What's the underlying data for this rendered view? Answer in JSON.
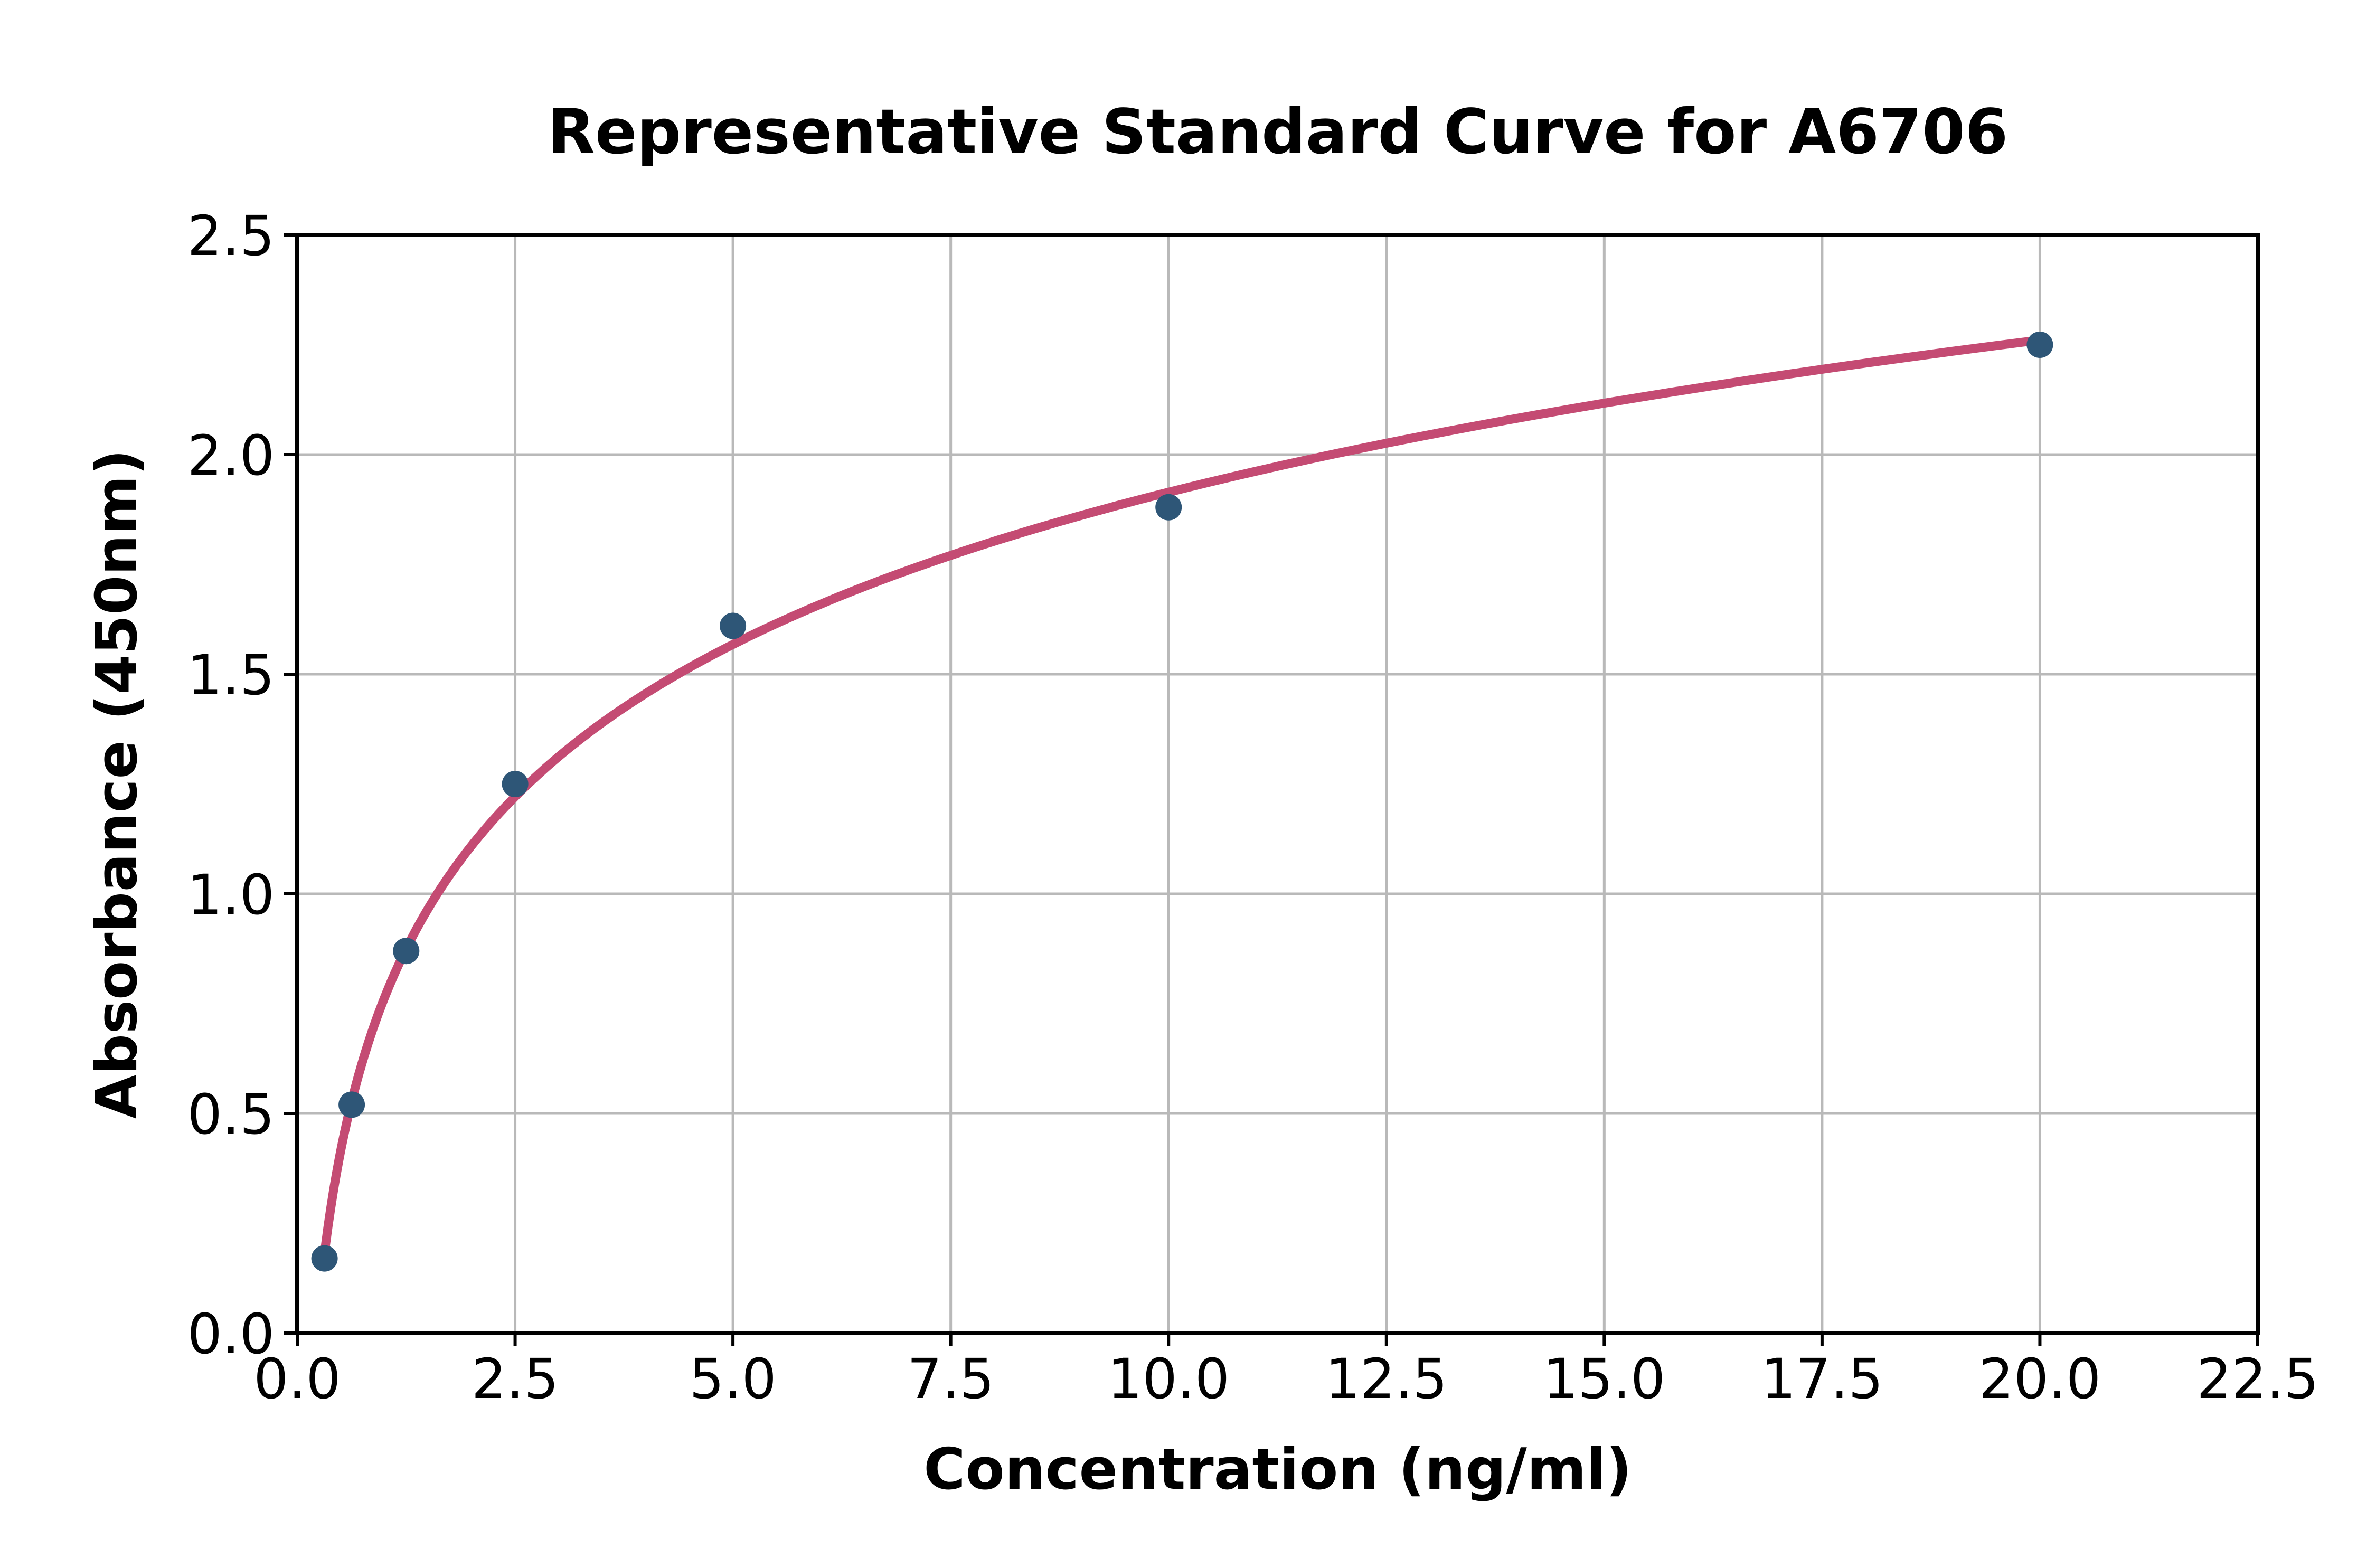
{
  "chart_data": {
    "type": "scatter",
    "title": "Representative Standard Curve for A6706",
    "xlabel": "Concentration (ng/ml)",
    "ylabel": "Absorbance (450nm)",
    "xlim": [
      0,
      22.5
    ],
    "ylim": [
      0,
      2.5
    ],
    "xtick_labels": [
      "0.0",
      "2.5",
      "5.0",
      "7.5",
      "10.0",
      "12.5",
      "15.0",
      "17.5",
      "20.0",
      "22.5"
    ],
    "ytick_labels": [
      "0.0",
      "0.5",
      "1.0",
      "1.5",
      "2.0",
      "2.5"
    ],
    "grid": true,
    "legend": "none",
    "series": [
      {
        "name": "standard-points",
        "type": "scatter",
        "x": [
          0.3125,
          0.625,
          1.25,
          2.5,
          5,
          10,
          20
        ],
        "y": [
          0.17,
          0.52,
          0.87,
          1.25,
          1.61,
          1.88,
          2.25
        ]
      },
      {
        "name": "fit-curve",
        "type": "line",
        "model": "logarithmic y = a + b*ln(x)",
        "a": 0.763,
        "b": 0.5,
        "x_start": 0.3125,
        "x_end": 20
      }
    ],
    "colors": {
      "marker": "#2e5677",
      "curve": "#c44b73",
      "grid": "#b9b9b9",
      "axis": "#000000",
      "background": "#ffffff"
    }
  }
}
